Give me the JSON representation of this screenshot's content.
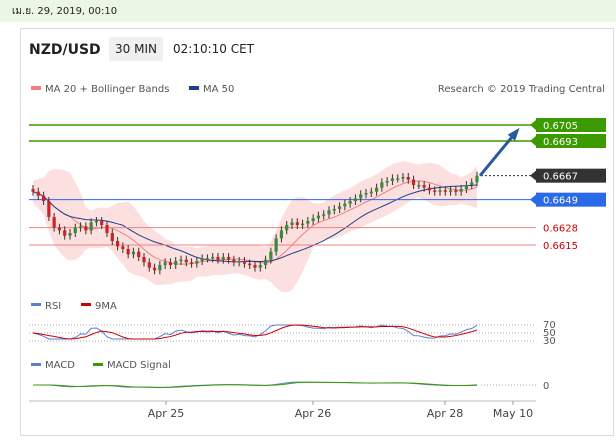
{
  "topbar": {
    "date": "เม.ย. 29, 2019, 00:10"
  },
  "header": {
    "pair": "NZD/USD",
    "timeframe": "30 MIN",
    "time": "02:10:10 CET"
  },
  "legend": {
    "ma20": "MA 20 + Bollinger Bands",
    "ma50": "MA 50",
    "credit": "Research © 2019 Trading Central"
  },
  "colors": {
    "ma20": "#f08080",
    "ma50": "#1f3f8a",
    "green": "#3a9a00",
    "red": "#cc0000",
    "blue": "#2a6ae8",
    "candle_up": "#3a8a3a",
    "candle_down": "#cc2222",
    "dark": "#333333"
  },
  "rsi_legend": {
    "rsi": "RSI",
    "ma": "9MA"
  },
  "rsi_levels": [
    "70",
    "50",
    "30"
  ],
  "macd_legend": {
    "macd": "MACD",
    "signal": "MACD Signal"
  },
  "macd_level": "0",
  "chart_data": {
    "type": "candlestick",
    "x_ticks": [
      "Apr 25",
      "Apr 26",
      "Apr 28",
      "May 10"
    ],
    "ylim": [
      0.6585,
      0.672
    ],
    "price_levels": [
      {
        "value": 0.6705,
        "label": "0.6705",
        "style": "green-box"
      },
      {
        "value": 0.6693,
        "label": "0.6693",
        "style": "green-box"
      },
      {
        "value": 0.6667,
        "label": "0.6667",
        "style": "dark-box"
      },
      {
        "value": 0.6649,
        "label": "0.6649",
        "style": "blue-box"
      },
      {
        "value": 0.6628,
        "label": "0.6628",
        "style": "red-text"
      },
      {
        "value": 0.6615,
        "label": "0.6615",
        "style": "red-text"
      }
    ],
    "close_series": [
      0.6655,
      0.6652,
      0.6648,
      0.6636,
      0.6628,
      0.6626,
      0.6622,
      0.6624,
      0.6628,
      0.6629,
      0.6626,
      0.6632,
      0.6633,
      0.663,
      0.6624,
      0.6618,
      0.6614,
      0.6612,
      0.6608,
      0.661,
      0.6606,
      0.6602,
      0.6598,
      0.6596,
      0.66,
      0.6602,
      0.66,
      0.6603,
      0.6604,
      0.6602,
      0.6601,
      0.6603,
      0.6605,
      0.6605,
      0.6606,
      0.6604,
      0.6606,
      0.6604,
      0.6602,
      0.6603,
      0.6601,
      0.66,
      0.6598,
      0.66,
      0.6604,
      0.661,
      0.662,
      0.6626,
      0.663,
      0.6632,
      0.663,
      0.6631,
      0.6633,
      0.6635,
      0.6637,
      0.6638,
      0.6641,
      0.6642,
      0.6644,
      0.6646,
      0.6648,
      0.665,
      0.6653,
      0.6654,
      0.6655,
      0.6658,
      0.6662,
      0.6663,
      0.6665,
      0.6665,
      0.6666,
      0.6664,
      0.666,
      0.666,
      0.6658,
      0.6656,
      0.6655,
      0.6656,
      0.6655,
      0.6656,
      0.6655,
      0.6657,
      0.666,
      0.6662,
      0.6667
    ],
    "forecast": {
      "from": 0.6667,
      "to": 0.6705
    }
  }
}
